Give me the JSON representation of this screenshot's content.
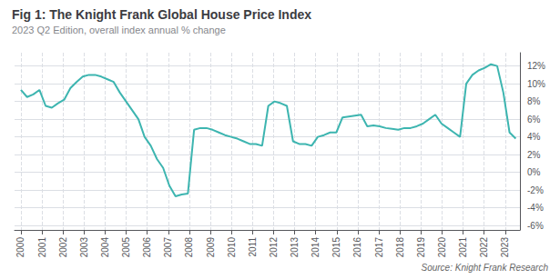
{
  "chart_data": {
    "type": "line",
    "title": "Fig 1: The Knight Frank Global House Price Index",
    "subtitle": "2023 Q2 Edition, overall index annual % change",
    "source": "Source: Knight Frank Research",
    "x": [
      2000,
      2000.29375,
      2000.5875,
      2000.88125,
      2001.175,
      2001.46875,
      2001.7625,
      2002.05625,
      2002.35,
      2002.64375,
      2002.9375,
      2003.23125,
      2003.525,
      2003.81875,
      2004.1125,
      2004.40625,
      2004.7,
      2004.99375,
      2005.2875,
      2005.58125,
      2005.875,
      2006.16875,
      2006.4625,
      2006.75625,
      2007.05,
      2007.34375,
      2007.6375,
      2007.93125,
      2008.225,
      2008.51875,
      2008.8125,
      2009.10625,
      2009.4,
      2009.69375,
      2009.9875,
      2010.28125,
      2010.575,
      2010.86875,
      2011.1625,
      2011.45625,
      2011.75,
      2012.04375,
      2012.3375,
      2012.63125,
      2012.925,
      2013.21875,
      2013.5125,
      2013.80625,
      2014.1,
      2014.39375,
      2014.6875,
      2014.98125,
      2015.275,
      2015.56875,
      2015.8625,
      2016.15625,
      2016.45,
      2016.74375,
      2017.0375,
      2017.33125,
      2017.625,
      2017.91875,
      2018.2125,
      2018.50625,
      2018.8,
      2019.09375,
      2019.3875,
      2019.68125,
      2019.975,
      2020.26875,
      2020.5625,
      2020.85625,
      2021.15,
      2021.44375,
      2021.7375,
      2022.03125,
      2022.325,
      2022.61875,
      2022.9125,
      2023.20625,
      2023.5
    ],
    "values": [
      9.3,
      8.5,
      8.8,
      9.3,
      7.5,
      7.3,
      7.8,
      8.2,
      9.5,
      10.2,
      10.8,
      11.0,
      11.0,
      10.8,
      10.5,
      10.2,
      9.0,
      8.0,
      7.0,
      6.0,
      4.0,
      3.0,
      1.5,
      0.5,
      -1.5,
      -2.7,
      -2.5,
      -2.4,
      4.8,
      5.0,
      5.0,
      4.8,
      4.5,
      4.2,
      4.0,
      3.8,
      3.5,
      3.2,
      3.2,
      3.0,
      7.5,
      8.0,
      7.8,
      7.5,
      3.5,
      3.2,
      3.2,
      3.0,
      4.0,
      4.2,
      4.5,
      4.5,
      6.2,
      6.3,
      6.4,
      6.5,
      5.2,
      5.3,
      5.2,
      5.0,
      4.9,
      4.8,
      5.0,
      5.0,
      5.2,
      5.5,
      6.0,
      6.5,
      5.5,
      5.0,
      4.5,
      4.0,
      10.0,
      11.0,
      11.5,
      11.8,
      12.2,
      12.0,
      9.0,
      4.5,
      3.8
    ],
    "color": "#3db5b0",
    "xlim": [
      1999.7,
      2023.7
    ],
    "xticks": [
      2000,
      2001,
      2002,
      2003,
      2004,
      2005,
      2006,
      2007,
      2008,
      2009,
      2010,
      2011,
      2012,
      2013,
      2014,
      2015,
      2016,
      2017,
      2018,
      2019,
      2020,
      2021,
      2022,
      2023
    ],
    "ylim": [
      -6.5,
      13.5
    ],
    "yticks": [
      {
        "value": -6,
        "label": "-6%"
      },
      {
        "value": -4,
        "label": "-4%"
      },
      {
        "value": -2,
        "label": "-2%"
      },
      {
        "value": 0,
        "label": "0%"
      },
      {
        "value": 2,
        "label": "2%"
      },
      {
        "value": 4,
        "label": "4%"
      },
      {
        "value": 6,
        "label": "6%"
      },
      {
        "value": 8,
        "label": "8%"
      },
      {
        "value": 10,
        "label": "10%"
      },
      {
        "value": 12,
        "label": "12%"
      }
    ],
    "grid": true
  }
}
